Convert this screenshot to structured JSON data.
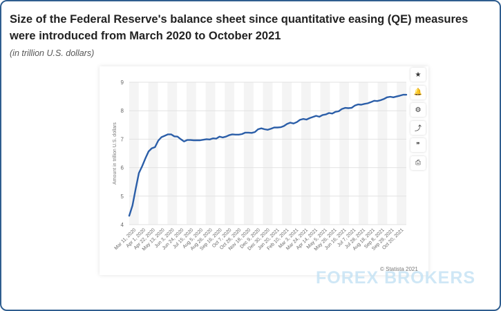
{
  "header": {
    "title": "Size of the Federal Reserve's balance sheet since quantitative easing (QE) measures were introduced from March 2020 to October 2021",
    "subtitle": "(in trillion U.S. dollars)"
  },
  "tools": [
    {
      "icon": "star-icon",
      "glyph": "★"
    },
    {
      "icon": "bell-icon",
      "glyph": "🔔"
    },
    {
      "icon": "gear-icon",
      "glyph": "⚙"
    },
    {
      "icon": "share-icon",
      "glyph": "⤴"
    },
    {
      "icon": "quote-icon",
      "glyph": "❞"
    },
    {
      "icon": "print-icon",
      "glyph": "⎙"
    }
  ],
  "credit": "© Statista 2021",
  "watermark": "FOREX BROKERS",
  "chart_data": {
    "type": "line",
    "title": "",
    "xlabel": "",
    "ylabel": "Amount in trillion U.S. dollars",
    "ylim": [
      4,
      9
    ],
    "yticks": [
      4,
      5,
      6,
      7,
      8,
      9
    ],
    "grid": true,
    "line_color": "#2b5ea8",
    "x_tick_labels": [
      "Mar 11, 2020",
      "Apr 1, 2020",
      "Apr 22, 2020",
      "May 13, 2020",
      "Jun 3, 2020",
      "Jun 24, 2020",
      "Jul 15, 2020",
      "Aug 5, 2020",
      "Aug 26, 2020",
      "Sep 16, 2020",
      "Oct 7, 2020",
      "Oct 28, 2020",
      "Nov 18, 2020",
      "Dec 9, 2020",
      "Dec 30, 2020",
      "Jan 20, 2021",
      "Feb 10, 2021",
      "Mar 3, 2021",
      "Mar 24, 2021",
      "Apr 14, 2021",
      "May 5, 2021",
      "May 26, 2021",
      "Jun 16, 2021",
      "Jul 7, 2021",
      "Jul 28, 2021",
      "Aug 18, 2021",
      "Sep 8, 2021",
      "Sep 29, 2021",
      "Oct 20, 2021"
    ],
    "values": [
      4.31,
      4.67,
      5.25,
      5.81,
      6.05,
      6.32,
      6.57,
      6.68,
      6.72,
      6.95,
      7.07,
      7.12,
      7.17,
      7.17,
      7.1,
      7.09,
      7.0,
      6.92,
      6.97,
      6.97,
      6.96,
      6.96,
      6.96,
      6.98,
      7.0,
      6.99,
      7.03,
      7.02,
      7.09,
      7.06,
      7.09,
      7.14,
      7.17,
      7.16,
      7.16,
      7.18,
      7.23,
      7.23,
      7.22,
      7.25,
      7.35,
      7.38,
      7.35,
      7.33,
      7.37,
      7.41,
      7.41,
      7.42,
      7.46,
      7.54,
      7.58,
      7.55,
      7.6,
      7.68,
      7.71,
      7.69,
      7.74,
      7.78,
      7.82,
      7.79,
      7.85,
      7.87,
      7.92,
      7.9,
      7.96,
      7.98,
      8.06,
      8.1,
      8.09,
      8.1,
      8.18,
      8.22,
      8.21,
      8.24,
      8.26,
      8.3,
      8.35,
      8.34,
      8.37,
      8.41,
      8.47,
      8.49,
      8.47,
      8.5,
      8.53,
      8.56,
      8.56
    ]
  }
}
